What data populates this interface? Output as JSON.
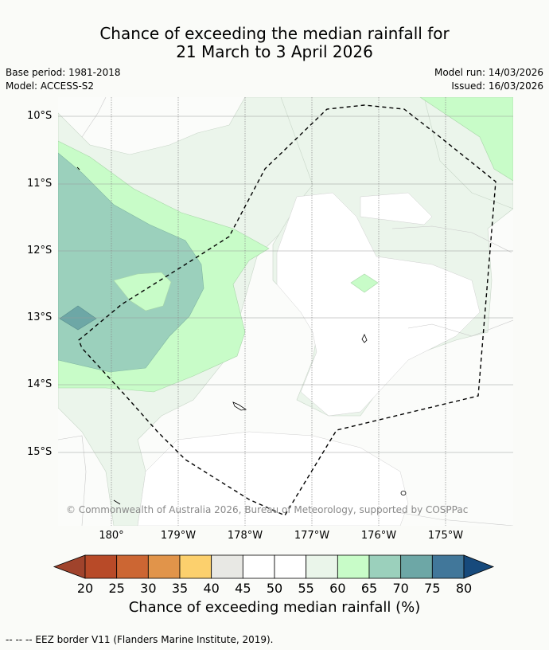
{
  "title": {
    "line1": "Chance of exceeding the median rainfall for",
    "line2": "21 March to 3 April 2026"
  },
  "meta": {
    "base_period": "Base period: 1981-2018",
    "model": "Model: ACCESS-S2",
    "model_run": "Model run: 14/03/2026",
    "issued": "Issued: 16/03/2026"
  },
  "map": {
    "lat_labels": [
      "10°S",
      "11°S",
      "12°S",
      "13°S",
      "14°S",
      "15°S"
    ],
    "lon_labels": [
      "180°",
      "179°W",
      "178°W",
      "177°W",
      "176°W",
      "175°W"
    ],
    "copyright": "© Commonwealth of Australia 2026, Bureau of Meteorology, supported by COSPPac"
  },
  "colorbar": {
    "ticks": [
      "20",
      "25",
      "30",
      "35",
      "40",
      "45",
      "50",
      "55",
      "60",
      "65",
      "70",
      "75",
      "80"
    ],
    "colors": [
      "#a0432c",
      "#b84a28",
      "#cc6633",
      "#e1944a",
      "#fcd06d",
      "#e8e8e4",
      "#ffffff",
      "#ffffff",
      "#eaf5ea",
      "#c8fcc8",
      "#9bd0bc",
      "#6da7a6",
      "#41779a",
      "#174a7c"
    ],
    "label": "Chance of exceeding median rainfall (%)"
  },
  "legend": {
    "eez": "-- -- -- EEZ border V11 (Flanders Marine Institute, 2019)."
  }
}
